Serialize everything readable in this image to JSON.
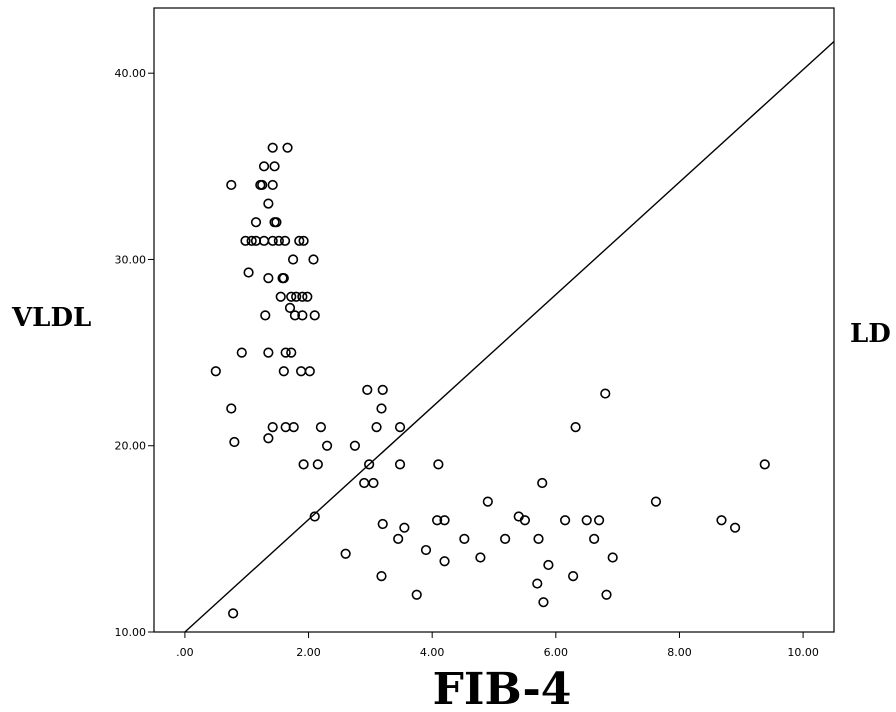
{
  "chart_data": {
    "type": "scatter",
    "title": "",
    "xlabel": "FIB-4",
    "ylabel": "VLDL",
    "right_label": "LD",
    "xlim": [
      -0.5,
      10.5
    ],
    "ylim": [
      10,
      43.5
    ],
    "x_ticks": [
      0,
      2,
      4,
      6,
      8,
      10
    ],
    "x_tick_labels": [
      ".00",
      "2.00",
      "4.00",
      "6.00",
      "8.00",
      "10.00"
    ],
    "y_ticks": [
      10,
      20,
      30,
      40
    ],
    "y_tick_labels": [
      "10.00",
      "20.00",
      "30.00",
      "40.00"
    ],
    "grid": false,
    "reference_line": {
      "from": [
        0,
        10
      ],
      "to": [
        10.5,
        41.7
      ]
    },
    "series": [
      {
        "marker": "open-circle",
        "points": [
          [
            0.5,
            24
          ],
          [
            0.75,
            34
          ],
          [
            0.75,
            22
          ],
          [
            0.8,
            20.2
          ],
          [
            0.78,
            11
          ],
          [
            0.92,
            25
          ],
          [
            0.98,
            31
          ],
          [
            1.03,
            29.3
          ],
          [
            1.08,
            31
          ],
          [
            1.15,
            32
          ],
          [
            1.15,
            31
          ],
          [
            1.22,
            34
          ],
          [
            1.25,
            34
          ],
          [
            1.28,
            35
          ],
          [
            1.28,
            31
          ],
          [
            1.3,
            27
          ],
          [
            1.35,
            33
          ],
          [
            1.35,
            29
          ],
          [
            1.35,
            25
          ],
          [
            1.35,
            20.4
          ],
          [
            1.42,
            36
          ],
          [
            1.42,
            34
          ],
          [
            1.42,
            31
          ],
          [
            1.42,
            21
          ],
          [
            1.45,
            35
          ],
          [
            1.45,
            32
          ],
          [
            1.48,
            32
          ],
          [
            1.52,
            31
          ],
          [
            1.55,
            28
          ],
          [
            1.58,
            29
          ],
          [
            1.6,
            29
          ],
          [
            1.6,
            24
          ],
          [
            1.62,
            31
          ],
          [
            1.63,
            25
          ],
          [
            1.63,
            21
          ],
          [
            1.66,
            36
          ],
          [
            1.7,
            27.4
          ],
          [
            1.72,
            28
          ],
          [
            1.72,
            25
          ],
          [
            1.75,
            30
          ],
          [
            1.76,
            21
          ],
          [
            1.78,
            27
          ],
          [
            1.8,
            28
          ],
          [
            1.85,
            31
          ],
          [
            1.88,
            24
          ],
          [
            1.9,
            28
          ],
          [
            1.9,
            27
          ],
          [
            1.92,
            31
          ],
          [
            1.92,
            19
          ],
          [
            1.98,
            28
          ],
          [
            2.02,
            24
          ],
          [
            2.08,
            30
          ],
          [
            2.1,
            27
          ],
          [
            2.1,
            16.2
          ],
          [
            2.15,
            19
          ],
          [
            2.2,
            21
          ],
          [
            2.3,
            20
          ],
          [
            2.6,
            14.2
          ],
          [
            2.75,
            20
          ],
          [
            2.9,
            18
          ],
          [
            2.95,
            23
          ],
          [
            2.98,
            19
          ],
          [
            3.05,
            18
          ],
          [
            3.1,
            21
          ],
          [
            3.18,
            13
          ],
          [
            3.18,
            22
          ],
          [
            3.2,
            23
          ],
          [
            3.2,
            15.8
          ],
          [
            3.45,
            15
          ],
          [
            3.48,
            21
          ],
          [
            3.48,
            19
          ],
          [
            3.55,
            15.6
          ],
          [
            3.75,
            12
          ],
          [
            3.9,
            14.4
          ],
          [
            4.08,
            16
          ],
          [
            4.1,
            19
          ],
          [
            4.2,
            13.8
          ],
          [
            4.2,
            16
          ],
          [
            4.52,
            15
          ],
          [
            4.78,
            14
          ],
          [
            4.9,
            17
          ],
          [
            5.18,
            15
          ],
          [
            5.4,
            16.2
          ],
          [
            5.5,
            16
          ],
          [
            5.7,
            12.6
          ],
          [
            5.72,
            15
          ],
          [
            5.78,
            18
          ],
          [
            5.8,
            11.6
          ],
          [
            5.88,
            13.6
          ],
          [
            6.15,
            16
          ],
          [
            6.28,
            13
          ],
          [
            6.32,
            21
          ],
          [
            6.5,
            16
          ],
          [
            6.62,
            15
          ],
          [
            6.7,
            16
          ],
          [
            6.8,
            22.8
          ],
          [
            6.82,
            12
          ],
          [
            6.92,
            14
          ],
          [
            7.62,
            17
          ],
          [
            8.68,
            16
          ],
          [
            8.9,
            15.6
          ],
          [
            9.38,
            19
          ]
        ]
      }
    ]
  }
}
